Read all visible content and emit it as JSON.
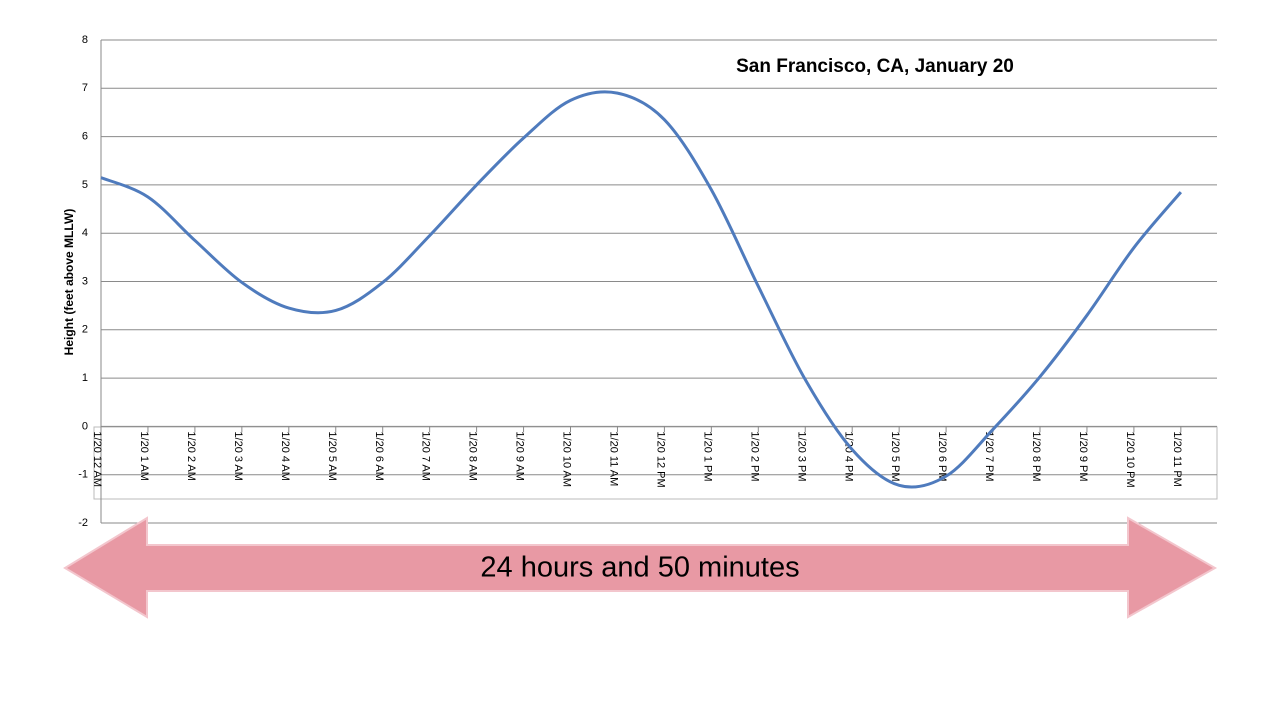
{
  "chart_data": {
    "type": "line",
    "title": "San Francisco, CA, January 20",
    "y_label": "Height (feet above MLLW)",
    "annotation": "24 hours and 50 minutes",
    "categories": [
      "1/20 12 AM",
      "1/20 1 AM",
      "1/20 2 AM",
      "1/20 3 AM",
      "1/20 4 AM",
      "1/20 5 AM",
      "1/20 6 AM",
      "1/20 7 AM",
      "1/20 8 AM",
      "1/20 9 AM",
      "1/20 10 AM",
      "1/20 11 AM",
      "1/20 12 PM",
      "1/20 1 PM",
      "1/20 2 PM",
      "1/20 3 PM",
      "1/20 4 PM",
      "1/20 5 PM",
      "1/20 6 PM",
      "1/20 7 PM",
      "1/20 8 PM",
      "1/20 9 PM",
      "1/20 10 PM",
      "1/20 11 PM"
    ],
    "series": [
      {
        "name": "Height",
        "color": "#4f7bbd",
        "values": [
          5.15,
          4.75,
          3.85,
          2.98,
          2.45,
          2.4,
          2.98,
          3.95,
          5.0,
          5.97,
          6.75,
          6.9,
          6.35,
          4.9,
          2.9,
          0.97,
          -0.48,
          -1.22,
          -1.03,
          -0.06,
          1.03,
          2.3,
          3.7,
          4.85
        ]
      }
    ],
    "ylim": [
      -2,
      8
    ],
    "yticks": [
      -2,
      -1,
      0,
      1,
      2,
      3,
      4,
      5,
      6,
      7,
      8
    ],
    "grid": true
  }
}
